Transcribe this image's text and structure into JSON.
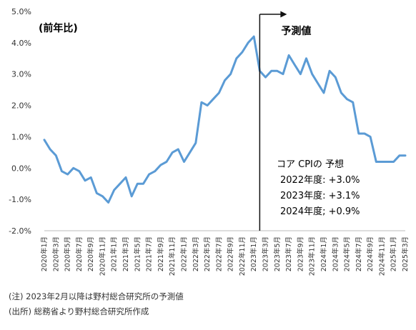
{
  "chart_data": {
    "type": "line",
    "ylabel": "(前年比)",
    "ylim": [
      -2.0,
      5.0
    ],
    "yticks": [
      "5.0%",
      "4.0%",
      "3.0%",
      "2.0%",
      "1.0%",
      "0.0%",
      "-1.0%",
      "-2.0%"
    ],
    "grid": false,
    "x": [
      "2020年1月",
      "2020年2月",
      "2020年3月",
      "2020年4月",
      "2020年5月",
      "2020年6月",
      "2020年7月",
      "2020年8月",
      "2020年9月",
      "2020年10月",
      "2020年11月",
      "2020年12月",
      "2021年1月",
      "2021年2月",
      "2021年3月",
      "2021年4月",
      "2021年5月",
      "2021年6月",
      "2021年7月",
      "2021年8月",
      "2021年9月",
      "2021年10月",
      "2021年11月",
      "2021年12月",
      "2022年1月",
      "2022年2月",
      "2022年3月",
      "2022年4月",
      "2022年5月",
      "2022年6月",
      "2022年7月",
      "2022年8月",
      "2022年9月",
      "2022年10月",
      "2022年11月",
      "2022年12月",
      "2023年1月",
      "2023年2月",
      "2023年3月",
      "2023年4月",
      "2023年5月",
      "2023年6月",
      "2023年7月",
      "2023年8月",
      "2023年9月",
      "2023年10月",
      "2023年11月",
      "2023年12月",
      "2024年1月",
      "2024年2月",
      "2024年3月",
      "2024年4月",
      "2024年5月",
      "2024年6月",
      "2024年7月",
      "2024年8月",
      "2024年9月",
      "2024年10月",
      "2024年11月",
      "2024年12月",
      "2025年1月",
      "2025年2月",
      "2025年3月"
    ],
    "xtick_labels": [
      "2020年1月",
      "2020年3月",
      "2020年5月",
      "2020年7月",
      "2020年9月",
      "2020年11月",
      "2021年1月",
      "2021年3月",
      "2021年5月",
      "2021年7月",
      "2021年9月",
      "2021年11月",
      "2022年1月",
      "2022年3月",
      "2022年5月",
      "2022年7月",
      "2022年9月",
      "2022年11月",
      "2023年1月",
      "2023年3月",
      "2023年5月",
      "2023年7月",
      "2023年9月",
      "2023年11月",
      "2024年1月",
      "2024年3月",
      "2024年5月",
      "2024年7月",
      "2024年9月",
      "2024年11月",
      "2025年1月",
      "2025年3月"
    ],
    "series": [
      {
        "values": [
          0.9,
          0.6,
          0.4,
          -0.1,
          -0.2,
          0.0,
          -0.1,
          -0.4,
          -0.3,
          -0.8,
          -0.9,
          -1.1,
          -0.7,
          -0.5,
          -0.3,
          -0.9,
          -0.5,
          -0.5,
          -0.2,
          -0.1,
          0.1,
          0.2,
          0.5,
          0.6,
          0.2,
          0.5,
          0.8,
          2.1,
          2.0,
          2.2,
          2.4,
          2.8,
          3.0,
          3.5,
          3.7,
          4.0,
          4.2,
          3.1,
          2.9,
          3.1,
          3.1,
          3.0,
          3.6,
          3.3,
          3.0,
          3.5,
          3.0,
          2.7,
          2.4,
          3.1,
          2.9,
          2.4,
          2.2,
          2.1,
          1.1,
          1.1,
          1.0,
          0.2,
          0.2,
          0.2,
          0.2,
          0.4,
          0.4
        ]
      }
    ],
    "forecast_marker": {
      "x": "2023年2月",
      "label": "予測値"
    },
    "annotation": {
      "title": "コア CPIの 予想",
      "lines": [
        "2022年度: +3.0%",
        "2023年度: +3.1%",
        "2024年度; +0.9%"
      ]
    },
    "colors": {
      "line": "#5b9bd5",
      "axis": "#222222",
      "marker": "#111111"
    }
  },
  "notes": [
    "(注) 2023年2月以降は野村総合研究所の予測値",
    "(出所) 総務省より野村総合研究所作成"
  ]
}
